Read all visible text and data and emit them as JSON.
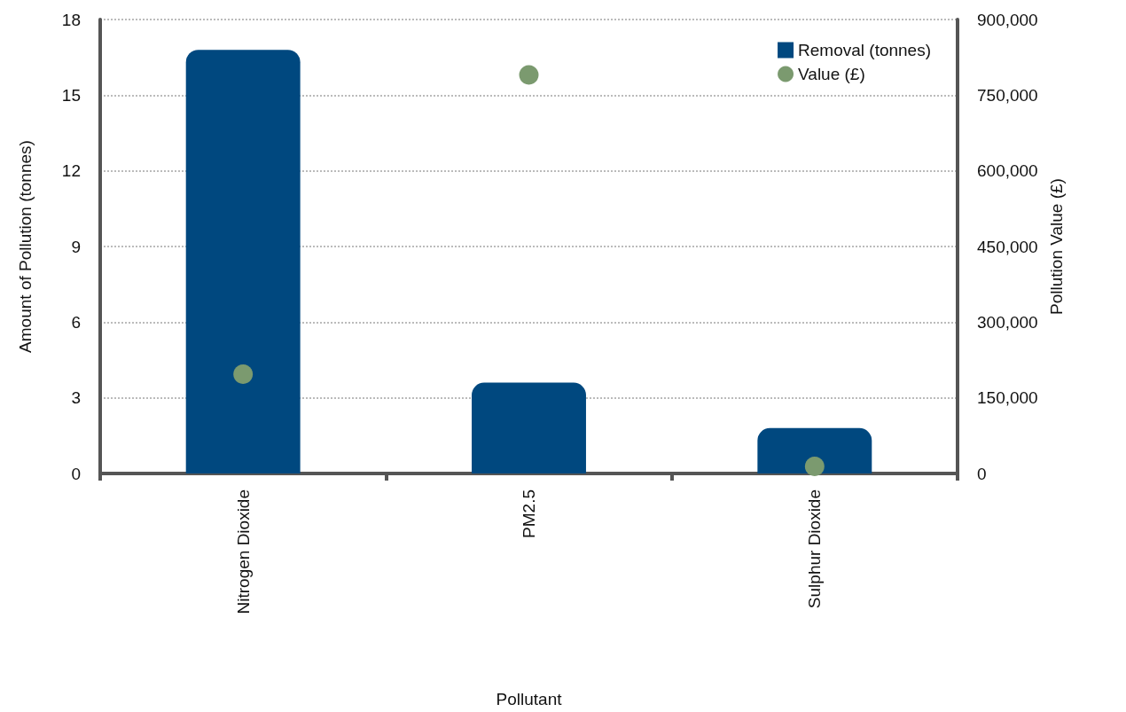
{
  "chart_data": {
    "type": "bar",
    "xlabel": "Pollutant",
    "ylabel": "Amount of Pollution (tonnes)",
    "y2label": "Pollution Value (£)",
    "categories": [
      "Nitrogen Dioxide",
      "PM2.5",
      "Sulphur Dioxide"
    ],
    "series": [
      {
        "name": "Removal (tonnes)",
        "color": "#00487f",
        "values": [
          16.8,
          3.6,
          1.8
        ]
      },
      {
        "name": "Value (£)",
        "type": "scatter",
        "axis": "y2",
        "color": "#7b9a6f",
        "marker": "circle",
        "values": [
          197000,
          790000,
          14000
        ]
      }
    ],
    "ylim": [
      0,
      18
    ],
    "yticks": [
      0,
      3,
      6,
      9,
      12,
      15,
      18
    ],
    "y2lim": [
      0,
      900000
    ],
    "y2ticks": [
      0,
      {
        "value": 150000,
        "label": "150,000"
      },
      {
        "value": 300000,
        "label": "300,000"
      },
      {
        "value": 450000,
        "label": "450,000"
      },
      {
        "value": 600000,
        "label": "600,000"
      },
      {
        "value": 750000,
        "label": "750,000"
      },
      {
        "value": 900000,
        "label": "900,000"
      }
    ],
    "grid": "y",
    "legend": "top right"
  }
}
